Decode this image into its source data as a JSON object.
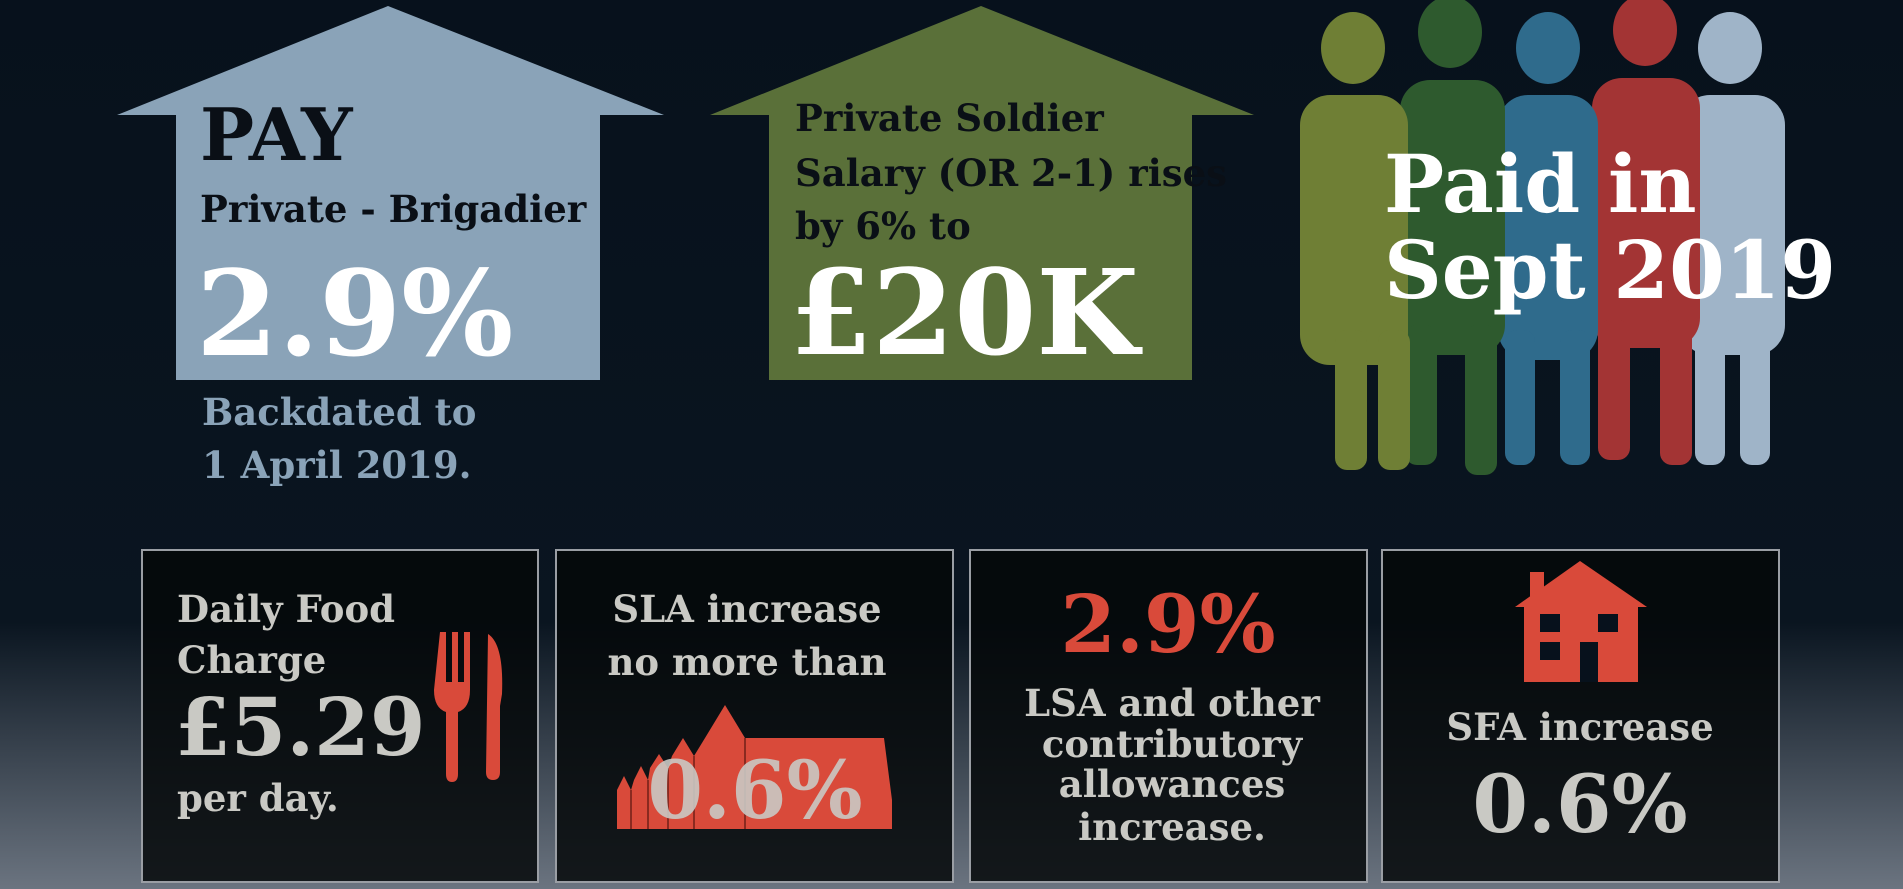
{
  "pay": {
    "heading": "PAY",
    "range": "Private - Brigadier",
    "increase": "2.9%",
    "note": [
      "Backdated to",
      "1 April 2019."
    ]
  },
  "soldier": {
    "lines": [
      "Private Soldier",
      "Salary (OR 2-1) rises",
      "by 6% to"
    ],
    "salary": "£20K"
  },
  "payment": {
    "lines": [
      "Paid in",
      "Sept 2019"
    ]
  },
  "cards": [
    {
      "lines": [
        "Daily Food",
        "Charge"
      ],
      "value": "£5.29",
      "suffix": "per day."
    },
    {
      "lines": [
        "SLA increase",
        "no more than"
      ],
      "value": "0.6%"
    },
    {
      "value": "2.9%",
      "lines": [
        "LSA and other",
        "contributory",
        "allowances",
        "increase."
      ]
    },
    {
      "lines": [
        "SFA increase"
      ],
      "value": "0.6%"
    }
  ]
}
